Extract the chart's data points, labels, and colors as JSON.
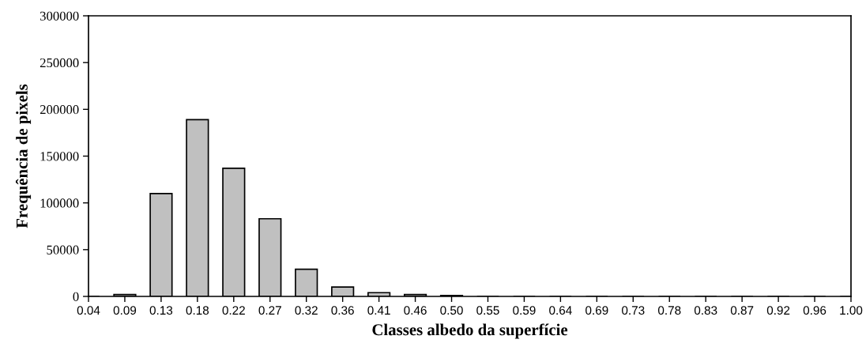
{
  "chart_data": {
    "type": "bar",
    "xlabel": "Classes albedo da superfície",
    "ylabel": "Frequência de pixels",
    "categories": [
      "0.04",
      "0.09",
      "0.13",
      "0.18",
      "0.22",
      "0.27",
      "0.32",
      "0.36",
      "0.41",
      "0.46",
      "0.50",
      "0.55",
      "0.59",
      "0.64",
      "0.69",
      "0.73",
      "0.78",
      "0.83",
      "0.87",
      "0.92",
      "0.96",
      "1.00"
    ],
    "values": [
      0,
      2000,
      110000,
      189000,
      137000,
      83000,
      29000,
      10000,
      4000,
      2000,
      1000,
      0,
      0,
      0,
      0,
      0,
      0,
      0,
      0,
      0,
      0,
      0
    ],
    "color": "#c0c0c0",
    "ylim": [
      0,
      300000
    ],
    "yticks": [
      0,
      50000,
      100000,
      150000,
      200000,
      250000,
      300000
    ],
    "grid": false
  }
}
